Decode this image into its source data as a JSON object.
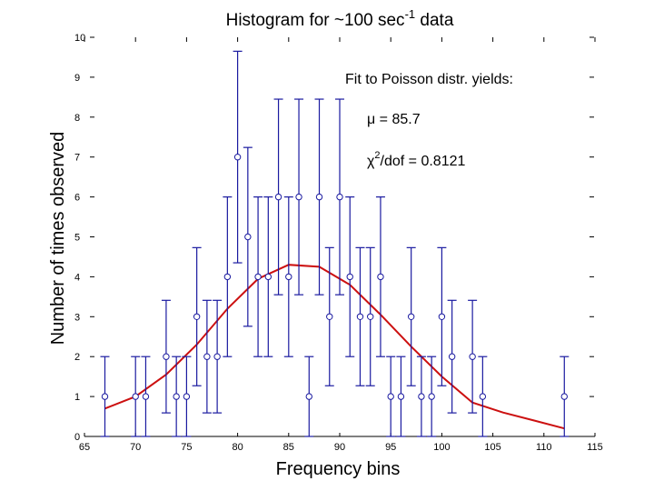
{
  "chart_data": {
    "type": "scatter",
    "title_main": "Histogram for ~100 sec",
    "title_sup": "-1",
    "title_tail": " data",
    "xlabel": "Frequency bins",
    "ylabel": "Number of times observed",
    "xlim": [
      65,
      115
    ],
    "ylim": [
      0,
      10
    ],
    "xticks": [
      "65",
      "70",
      "75",
      "80",
      "85",
      "90",
      "95",
      "100",
      "105",
      "110",
      "115"
    ],
    "yticks": [
      "0",
      "1",
      "2",
      "3",
      "4",
      "5",
      "6",
      "7",
      "8",
      "9",
      "10"
    ],
    "grid": false,
    "annotations": {
      "fit_heading": "Fit to Poisson distr. yields:",
      "mu_text": "μ = 85.7",
      "chi_symbol": "χ",
      "chi_sup": "2",
      "chi_tail": "/dof = 0.8121"
    },
    "series": [
      {
        "kind": "errorbar-points",
        "x": [
          67,
          70,
          71,
          73,
          74,
          75,
          76,
          77,
          78,
          79,
          80,
          81,
          82,
          83,
          84,
          85,
          86,
          87,
          88,
          89,
          90,
          91,
          92,
          93,
          94,
          95,
          96,
          97,
          98,
          99,
          100,
          101,
          103,
          104,
          112
        ],
        "y": [
          1,
          1,
          1,
          2,
          1,
          1,
          3,
          2,
          2,
          4,
          7,
          5,
          4,
          4,
          6,
          4,
          6,
          1,
          6,
          3,
          6,
          4,
          3,
          3,
          4,
          1,
          1,
          3,
          1,
          1,
          3,
          2,
          2,
          1,
          1
        ],
        "err": [
          1,
          1,
          1,
          1.41,
          1,
          1,
          1.73,
          1.41,
          1.41,
          2,
          2.65,
          2.24,
          2,
          2,
          2.45,
          2,
          2.45,
          1,
          2.45,
          1.73,
          2.45,
          2,
          1.73,
          1.73,
          2,
          1,
          1,
          1.73,
          1,
          1,
          1.73,
          1.41,
          1.41,
          1,
          1
        ]
      },
      {
        "kind": "line",
        "x": [
          67,
          70,
          73,
          76,
          79,
          82,
          85,
          88,
          91,
          94,
          97,
          100,
          103,
          106,
          109,
          112
        ],
        "y": [
          0.7,
          1.0,
          1.55,
          2.3,
          3.2,
          3.95,
          4.3,
          4.25,
          3.8,
          3.05,
          2.25,
          1.5,
          0.85,
          0.6,
          0.4,
          0.2
        ]
      }
    ],
    "colors": {
      "points": "#1a1aa0",
      "errorbars": "#1a1aa0",
      "fit_line": "#cc1010",
      "axes": "#000000"
    }
  }
}
